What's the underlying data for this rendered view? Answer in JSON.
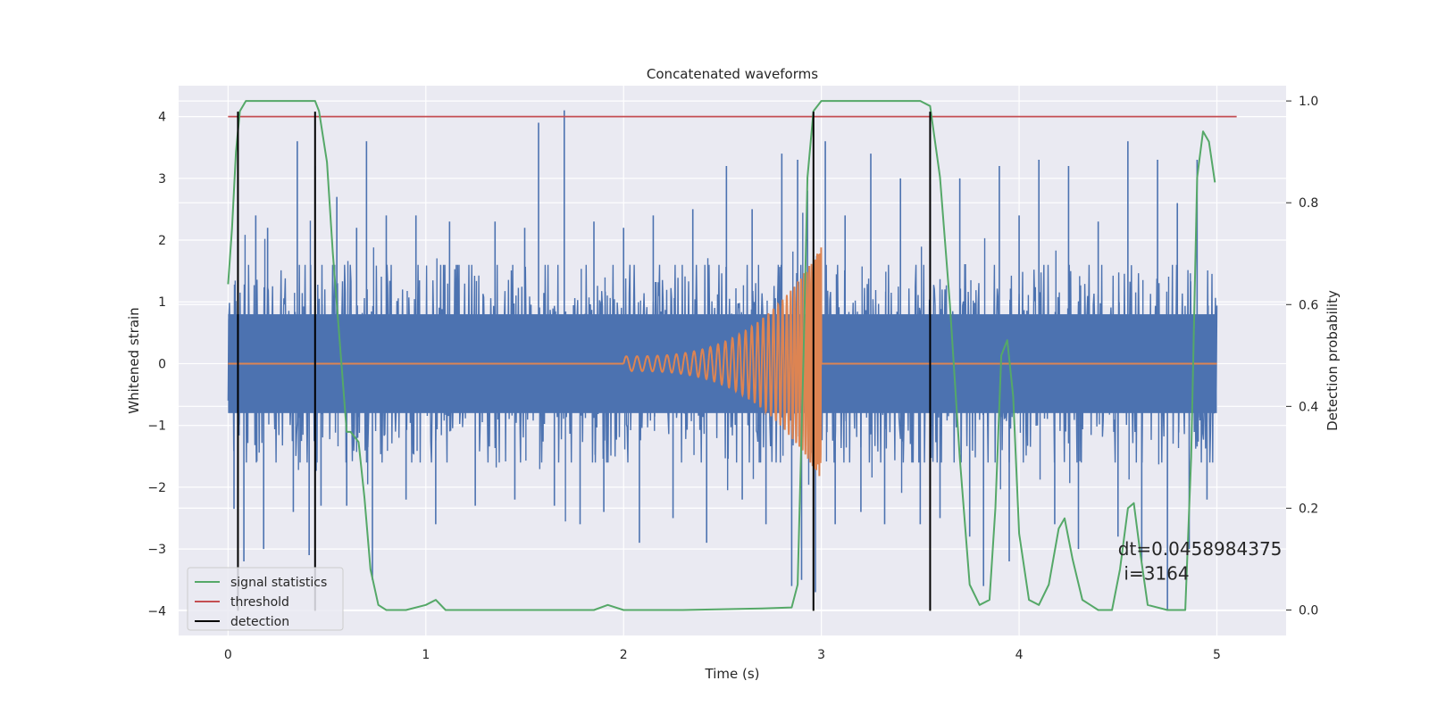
{
  "chart_data": {
    "type": "line",
    "title": "Concatenated waveforms",
    "xlabel": "Time (s)",
    "ylabel": "Whitened strain",
    "y2label": "Detection probability",
    "xlim": [
      -0.25,
      5.35
    ],
    "ylim": [
      -4.4,
      4.5
    ],
    "y2lim": [
      -0.05,
      1.03
    ],
    "xticks": [
      0,
      1,
      2,
      3,
      4,
      5
    ],
    "yticks": [
      -4,
      -3,
      -2,
      -1,
      0,
      1,
      2,
      3,
      4
    ],
    "y2ticks": [
      0.0,
      0.2,
      0.4,
      0.6,
      0.8,
      1.0
    ],
    "y2ticklabels": [
      "0.0",
      "0.2",
      "0.4",
      "0.6",
      "0.8",
      "1.0"
    ],
    "grid": true,
    "legend_position": "lower-left",
    "background_color": "#eaeaf2",
    "series": [
      {
        "key": "strain",
        "axis": "left",
        "color": "#4c72b0",
        "description_noise_band": [
          -0.8,
          0.8
        ],
        "x_range": [
          0,
          5
        ],
        "spikes": [
          [
            0.03,
            -2.35
          ],
          [
            0.05,
            2.6
          ],
          [
            0.08,
            -3.2
          ],
          [
            0.14,
            2.4
          ],
          [
            0.18,
            -3.0
          ],
          [
            0.2,
            2.2
          ],
          [
            0.33,
            -2.4
          ],
          [
            0.35,
            3.6
          ],
          [
            0.41,
            -3.1
          ],
          [
            0.44,
            3.2
          ],
          [
            0.47,
            -2.3
          ],
          [
            0.55,
            2.7
          ],
          [
            0.6,
            -2.3
          ],
          [
            0.65,
            2.2
          ],
          [
            0.7,
            3.6
          ],
          [
            0.73,
            -3.5
          ],
          [
            0.8,
            2.4
          ],
          [
            0.9,
            -2.2
          ],
          [
            0.95,
            2.4
          ],
          [
            1.05,
            -2.6
          ],
          [
            1.12,
            2.3
          ],
          [
            1.25,
            -2.3
          ],
          [
            1.35,
            2.3
          ],
          [
            1.45,
            -2.2
          ],
          [
            1.5,
            2.2
          ],
          [
            1.57,
            3.9
          ],
          [
            1.65,
            -2.3
          ],
          [
            1.7,
            4.1
          ],
          [
            1.78,
            -2.6
          ],
          [
            1.85,
            2.3
          ],
          [
            1.9,
            -2.4
          ],
          [
            2.0,
            2.2
          ],
          [
            2.08,
            -2.9
          ],
          [
            2.15,
            2.4
          ],
          [
            2.25,
            -2.5
          ],
          [
            2.35,
            2.5
          ],
          [
            2.42,
            -2.9
          ],
          [
            2.52,
            3.2
          ],
          [
            2.6,
            -2.2
          ],
          [
            2.65,
            2.5
          ],
          [
            2.72,
            -2.6
          ],
          [
            2.8,
            3.4
          ],
          [
            2.85,
            -3.6
          ],
          [
            2.88,
            3.3
          ],
          [
            2.9,
            -3.5
          ],
          [
            2.93,
            2.8
          ],
          [
            2.97,
            -3.7
          ],
          [
            3.02,
            3.6
          ],
          [
            3.07,
            -2.6
          ],
          [
            3.12,
            2.4
          ],
          [
            3.2,
            -2.4
          ],
          [
            3.25,
            3.4
          ],
          [
            3.32,
            -2.6
          ],
          [
            3.4,
            3.0
          ],
          [
            3.5,
            -2.6
          ],
          [
            3.55,
            2.9
          ],
          [
            3.6,
            -2.5
          ],
          [
            3.7,
            3.0
          ],
          [
            3.75,
            -2.8
          ],
          [
            3.82,
            -3.6
          ],
          [
            3.9,
            3.2
          ],
          [
            3.95,
            -3.2
          ],
          [
            4.0,
            2.4
          ],
          [
            4.1,
            3.3
          ],
          [
            4.18,
            -2.6
          ],
          [
            4.25,
            3.2
          ],
          [
            4.3,
            -3.0
          ],
          [
            4.4,
            2.3
          ],
          [
            4.5,
            -2.8
          ],
          [
            4.55,
            3.6
          ],
          [
            4.62,
            -3.2
          ],
          [
            4.7,
            3.3
          ],
          [
            4.75,
            -4.0
          ],
          [
            4.8,
            2.6
          ],
          [
            4.86,
            -3.0
          ],
          [
            4.9,
            3.3
          ],
          [
            4.95,
            -2.2
          ]
        ]
      },
      {
        "key": "injected-waveform",
        "axis": "left",
        "color": "#dd8452",
        "description": "chirp signal between t=2.0 and t=3.0 s, amplitude growing to about 2",
        "t_start": 2.0,
        "t_end": 3.0,
        "peak_amplitude": 2.0
      },
      {
        "key": "signal-statistics",
        "name": "signal statistics",
        "axis": "right",
        "color": "#55a868",
        "x": [
          0.0,
          0.02,
          0.04,
          0.06,
          0.09,
          0.12,
          0.2,
          0.3,
          0.4,
          0.44,
          0.46,
          0.5,
          0.53,
          0.56,
          0.58,
          0.6,
          0.62,
          0.66,
          0.69,
          0.72,
          0.76,
          0.8,
          0.9,
          1.0,
          1.05,
          1.1,
          1.3,
          1.6,
          1.85,
          1.92,
          2.0,
          2.3,
          2.7,
          2.85,
          2.88,
          2.91,
          2.93,
          2.96,
          3.0,
          3.2,
          3.5,
          3.55,
          3.6,
          3.65,
          3.7,
          3.75,
          3.8,
          3.85,
          3.88,
          3.91,
          3.94,
          3.97,
          4.0,
          4.05,
          4.1,
          4.15,
          4.2,
          4.23,
          4.27,
          4.32,
          4.36,
          4.4,
          4.47,
          4.51,
          4.55,
          4.58,
          4.61,
          4.65,
          4.75,
          4.84,
          4.87,
          4.9,
          4.93,
          4.96,
          4.99
        ],
        "y": [
          0.64,
          0.75,
          0.9,
          0.98,
          1.0,
          1.0,
          1.0,
          1.0,
          1.0,
          1.0,
          0.98,
          0.88,
          0.7,
          0.55,
          0.45,
          0.35,
          0.35,
          0.33,
          0.22,
          0.08,
          0.01,
          0.0,
          0.0,
          0.01,
          0.02,
          0.0,
          0.0,
          0.0,
          0.0,
          0.01,
          0.0,
          0.0,
          0.003,
          0.005,
          0.05,
          0.5,
          0.85,
          0.98,
          1.0,
          1.0,
          1.0,
          0.99,
          0.85,
          0.6,
          0.3,
          0.05,
          0.01,
          0.02,
          0.2,
          0.5,
          0.53,
          0.42,
          0.15,
          0.02,
          0.01,
          0.05,
          0.16,
          0.18,
          0.1,
          0.02,
          0.01,
          0.0,
          0.0,
          0.08,
          0.2,
          0.21,
          0.12,
          0.01,
          0.0,
          0.0,
          0.3,
          0.85,
          0.94,
          0.92,
          0.84
        ]
      },
      {
        "key": "threshold",
        "name": "threshold",
        "axis": "left",
        "color": "#c44e52",
        "x": [
          0,
          5.1
        ],
        "y": [
          4.0,
          4.0
        ]
      },
      {
        "key": "detection",
        "name": "detection",
        "axis": "left",
        "color": "#000000",
        "x_positions": [
          0.05,
          0.44,
          2.96,
          3.55
        ],
        "y_range": [
          -4.0,
          4.08
        ]
      }
    ],
    "annotations": [
      {
        "text": "dt=0.0458984375",
        "x": 4.5,
        "y": -3.1
      },
      {
        "text": "i=3164",
        "x": 4.53,
        "y": -3.5
      }
    ]
  }
}
